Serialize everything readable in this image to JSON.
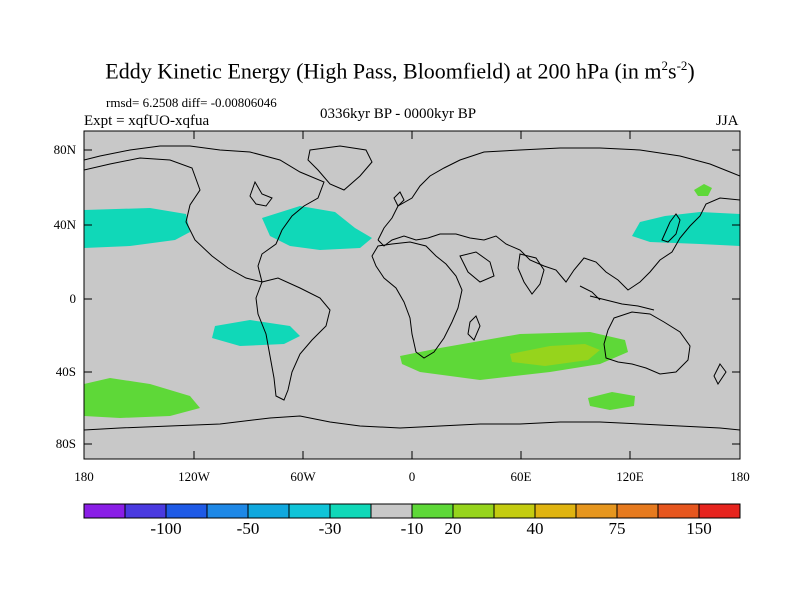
{
  "title": "Eddy Kinetic Energy (High Pass, Bloomfield) at 200 hPa (in m",
  "title_sup1": "2",
  "title_mid": "s",
  "title_sup2": "-2",
  "title_end": ")",
  "stats": "rmsd= 6.2508 diff= -0.00806046",
  "expt": "Expt = xqfUO-xqfua",
  "period": "0336kyr BP - 0000kyr BP",
  "season": "JJA",
  "lat_labels": [
    "80N",
    "40N",
    "0",
    "40S",
    "80S"
  ],
  "lon_labels": [
    "180",
    "120W",
    "60W",
    "0",
    "60E",
    "120E",
    "180"
  ],
  "colorbar": {
    "colors": [
      "#8a1ee6",
      "#4a3ae0",
      "#1e5ae6",
      "#1e88e6",
      "#10a8de",
      "#10c4d8",
      "#10d8b8",
      "#c8c8c8",
      "#5ed838",
      "#96d41c",
      "#c4cc10",
      "#e0b410",
      "#e6961e",
      "#e67a1e",
      "#e6561e",
      "#e6241e"
    ],
    "labels": [
      "-100",
      "-50",
      "-30",
      "-10",
      "20",
      "40",
      "75",
      "150"
    ]
  },
  "map": {
    "background": "#c8c8c8",
    "anomaly_regions": [
      {
        "name": "north-pacific-east",
        "level": -10,
        "color": "#10d8b8"
      },
      {
        "name": "north-pacific-west",
        "level": -10,
        "color": "#10d8b8"
      },
      {
        "name": "north-atlantic",
        "level": -10,
        "color": "#10d8b8"
      },
      {
        "name": "south-pacific",
        "level": -10,
        "color": "#10d8b8"
      },
      {
        "name": "kamchatka",
        "level": 20,
        "color": "#5ed838"
      },
      {
        "name": "south-indian-ocean",
        "level": 20,
        "color": "#5ed838"
      },
      {
        "name": "south-indian-core",
        "level": 40,
        "color": "#96d41c"
      },
      {
        "name": "southern-ocean-pacific",
        "level": 20,
        "color": "#5ed838"
      },
      {
        "name": "southern-ocean-indian",
        "level": 20,
        "color": "#5ed838"
      }
    ]
  }
}
